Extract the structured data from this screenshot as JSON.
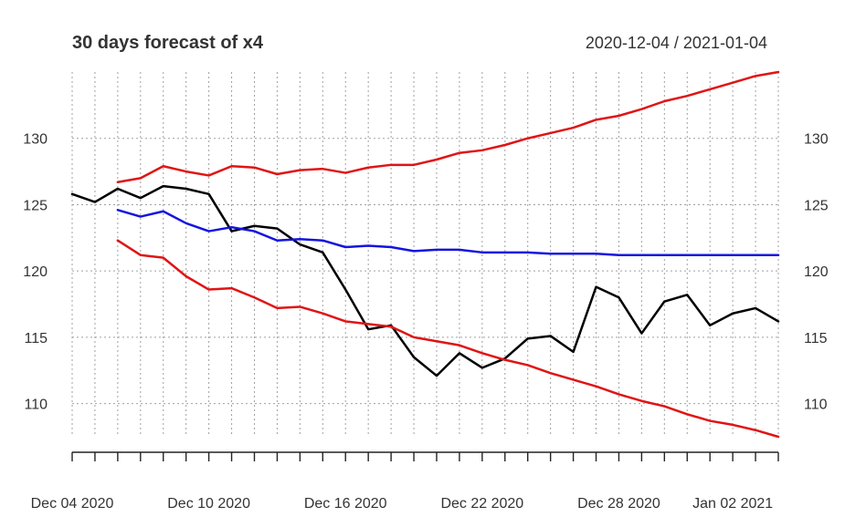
{
  "title": "30 days forecast of x4",
  "date_range": "2020-12-04 / 2021-01-04",
  "chart_data": {
    "type": "line",
    "title": "30 days forecast of x4",
    "subtitle": "2020-12-04 / 2021-01-04",
    "x": [
      "2020-12-04",
      "2020-12-05",
      "2020-12-06",
      "2020-12-07",
      "2020-12-08",
      "2020-12-09",
      "2020-12-10",
      "2020-12-11",
      "2020-12-12",
      "2020-12-13",
      "2020-12-14",
      "2020-12-15",
      "2020-12-16",
      "2020-12-17",
      "2020-12-18",
      "2020-12-19",
      "2020-12-20",
      "2020-12-21",
      "2020-12-22",
      "2020-12-23",
      "2020-12-24",
      "2020-12-25",
      "2020-12-26",
      "2020-12-27",
      "2020-12-28",
      "2020-12-29",
      "2020-12-30",
      "2020-12-31",
      "2021-01-01",
      "2021-01-02",
      "2021-01-03",
      "2021-01-04"
    ],
    "x_tick_labels": [
      {
        "date": "2020-12-04",
        "label": "Dec 04 2020"
      },
      {
        "date": "2020-12-10",
        "label": "Dec 10 2020"
      },
      {
        "date": "2020-12-16",
        "label": "Dec 16 2020"
      },
      {
        "date": "2020-12-22",
        "label": "Dec 22 2020"
      },
      {
        "date": "2020-12-28",
        "label": "Dec 28 2020"
      },
      {
        "date": "2021-01-02",
        "label": "Jan 02 2021"
      }
    ],
    "y_ticks": [
      110,
      115,
      120,
      125,
      130
    ],
    "ylim": [
      107.5,
      135
    ],
    "grid": true,
    "series": [
      {
        "color": "#000000",
        "values": [
          125.8,
          125.2,
          126.2,
          125.5,
          126.4,
          126.2,
          125.8,
          123.0,
          123.4,
          123.2,
          122.0,
          121.4,
          118.6,
          115.6,
          115.9,
          113.5,
          112.1,
          113.8,
          112.7,
          113.4,
          114.9,
          115.1,
          113.9,
          118.8,
          118.0,
          115.3,
          117.7,
          118.2,
          115.9,
          116.8,
          117.2,
          116.2
        ]
      },
      {
        "color": "#1414e0",
        "values": [
          null,
          null,
          124.6,
          124.1,
          124.5,
          123.6,
          123.0,
          123.3,
          123.0,
          122.3,
          122.4,
          122.3,
          121.8,
          121.9,
          121.8,
          121.5,
          121.6,
          121.6,
          121.4,
          121.4,
          121.4,
          121.3,
          121.3,
          121.3,
          121.2,
          121.2,
          121.2,
          121.2,
          121.2,
          121.2,
          121.2,
          121.2
        ]
      },
      {
        "color": "#e01414",
        "values": [
          null,
          null,
          126.7,
          127.0,
          127.9,
          127.5,
          127.2,
          127.9,
          127.8,
          127.3,
          127.6,
          127.7,
          127.4,
          127.8,
          128.0,
          128.0,
          128.4,
          128.9,
          129.1,
          129.5,
          130.0,
          130.4,
          130.8,
          131.4,
          131.7,
          132.2,
          132.8,
          133.2,
          133.7,
          134.2,
          134.7,
          135.0
        ]
      },
      {
        "color": "#e01414",
        "values": [
          null,
          null,
          122.3,
          121.2,
          121.0,
          119.6,
          118.6,
          118.7,
          118.0,
          117.2,
          117.3,
          116.8,
          116.2,
          116.0,
          115.8,
          115.0,
          114.7,
          114.4,
          113.8,
          113.3,
          112.9,
          112.3,
          111.8,
          111.3,
          110.7,
          110.2,
          109.8,
          109.2,
          108.7,
          108.4,
          108.0,
          107.5
        ]
      }
    ]
  }
}
